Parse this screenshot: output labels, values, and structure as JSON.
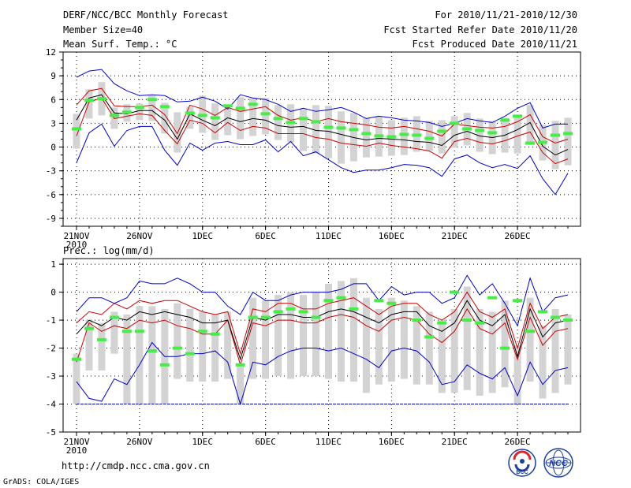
{
  "header": {
    "title": "DERF/NCC/BCC Monthly Forecast",
    "member_size": "Member Size=40",
    "variable": "Mean Surf. Temp.: °C",
    "period": "For 2010/11/21-2010/12/30",
    "fcst_started": "Fcst Started Refer Date 2010/11/20",
    "fcst_produced": "Fcst Produced Date 2010/11/21"
  },
  "footer": {
    "url": "http://cmdp.ncc.cma.gov.cn",
    "credit": "GrADS: COLA/IGES",
    "logo_bcc_text": "BCC",
    "logo_ncc_text": "NCC"
  },
  "colors": {
    "envelope": "#0000cc",
    "percentile": "#cc0000",
    "mean": "#000000",
    "box": "#d3d3d3",
    "obs": "#44ee44",
    "grid": "#000000"
  },
  "chart_data": [
    {
      "type": "box-line",
      "title": "Mean Surf. Temp.: °C",
      "ylim": [
        -10,
        12
      ],
      "yticks": [
        12,
        9,
        6,
        3,
        0,
        -3,
        -6,
        -9
      ],
      "xticks": [
        {
          "day": 0,
          "label": "21NOV",
          "sub": "2010"
        },
        {
          "day": 5,
          "label": "26NOV"
        },
        {
          "day": 10,
          "label": "1DEC"
        },
        {
          "day": 15,
          "label": "6DEC"
        },
        {
          "day": 20,
          "label": "11DEC"
        },
        {
          "day": 25,
          "label": "16DEC"
        },
        {
          "day": 30,
          "label": "21DEC"
        },
        {
          "day": 35,
          "label": "26DEC"
        }
      ],
      "days": 40,
      "series": [
        {
          "name": "max",
          "values": [
            8.8,
            9.6,
            9.8,
            8.0,
            7.1,
            6.5,
            6.6,
            6.5,
            5.7,
            5.8,
            6.3,
            5.8,
            4.8,
            6.6,
            6.2,
            6.0,
            5.4,
            4.5,
            4.9,
            4.5,
            4.7,
            5.0,
            4.4,
            3.6,
            3.9,
            3.7,
            3.4,
            3.3,
            3.1,
            2.6,
            3.0,
            3.6,
            3.3,
            3.1,
            3.9,
            4.9,
            5.6,
            2.4,
            2.9,
            2.9
          ]
        },
        {
          "name": "p90",
          "values": [
            5.3,
            7.1,
            7.4,
            5.2,
            5.1,
            5.1,
            5.3,
            4.1,
            1.7,
            5.3,
            4.8,
            4.0,
            5.0,
            4.5,
            4.8,
            5.1,
            4.0,
            3.4,
            3.7,
            3.2,
            3.6,
            3.2,
            3.0,
            2.8,
            2.5,
            2.4,
            2.6,
            2.3,
            2.0,
            1.4,
            2.9,
            2.7,
            2.5,
            2.4,
            2.6,
            3.2,
            4.1,
            1.3,
            0.5,
            1.0
          ]
        },
        {
          "name": "mean",
          "values": [
            3.4,
            6.2,
            6.6,
            4.3,
            4.2,
            4.6,
            4.6,
            3.4,
            1.0,
            4.2,
            3.4,
            2.7,
            3.7,
            3.2,
            3.6,
            3.4,
            2.7,
            2.5,
            2.6,
            2.1,
            2.0,
            1.6,
            1.2,
            0.9,
            1.1,
            1.0,
            0.9,
            0.7,
            0.6,
            0.2,
            1.5,
            2.0,
            1.4,
            1.2,
            1.5,
            2.2,
            3.1,
            0.1,
            -1.0,
            -0.3
          ]
        },
        {
          "name": "p10",
          "values": [
            1.4,
            5.7,
            6.2,
            3.6,
            3.9,
            4.2,
            4.0,
            2.1,
            0.4,
            3.4,
            3.0,
            1.8,
            3.1,
            2.1,
            2.6,
            2.4,
            1.7,
            1.7,
            1.7,
            1.2,
            1.0,
            0.5,
            0.3,
            0.1,
            0.5,
            0.2,
            0.0,
            -0.2,
            -0.5,
            -1.4,
            0.7,
            1.1,
            0.6,
            0.4,
            0.8,
            1.4,
            1.9,
            -0.7,
            -2.1,
            -1.5
          ]
        },
        {
          "name": "min",
          "values": [
            -2.0,
            1.8,
            2.9,
            0.1,
            2.1,
            2.6,
            2.6,
            -0.4,
            -2.3,
            0.5,
            -0.4,
            0.5,
            0.7,
            0.3,
            0.3,
            0.9,
            -0.6,
            0.7,
            -1.1,
            -0.6,
            -1.6,
            -2.6,
            -3.2,
            -2.9,
            -2.9,
            -2.6,
            -2.2,
            -2.3,
            -2.6,
            -3.7,
            -1.5,
            -1.0,
            -2.0,
            -2.6,
            -2.2,
            -2.7,
            -1.1,
            -4.0,
            -6.0,
            -3.3
          ]
        },
        {
          "name": "box_high",
          "values": [
            4.2,
            7.3,
            8.2,
            5.0,
            5.4,
            5.5,
            6.5,
            5.6,
            4.4,
            5.1,
            6.5,
            5.5,
            4.9,
            6.3,
            6.2,
            6.2,
            5.3,
            5.4,
            4.8,
            5.3,
            5.2,
            4.5,
            4.3,
            3.7,
            3.9,
            3.4,
            3.7,
            3.9,
            3.3,
            3.4,
            3.9,
            4.3,
            3.6,
            3.3,
            3.7,
            4.1,
            5.3,
            2.8,
            3.3,
            3.7
          ]
        },
        {
          "name": "box_low",
          "values": [
            -0.2,
            3.6,
            4.0,
            2.3,
            3.2,
            3.4,
            3.3,
            1.7,
            -0.7,
            2.3,
            1.8,
            0.9,
            1.5,
            1.0,
            1.4,
            1.6,
            0.9,
            0.6,
            -0.5,
            -0.8,
            -1.4,
            -2.1,
            -1.8,
            -1.3,
            -1.2,
            -1.1,
            -1.0,
            -0.6,
            -0.5,
            -0.8,
            -0.1,
            0.2,
            -0.6,
            -0.9,
            -0.7,
            -0.8,
            0.3,
            -1.7,
            -2.8,
            -2.3
          ]
        },
        {
          "name": "observed",
          "values": [
            2.3,
            5.9,
            6.1,
            4.0,
            4.4,
            5.0,
            6.0,
            5.1,
            null,
            4.3,
            4.0,
            3.7,
            5.2,
            4.9,
            5.4,
            4.2,
            3.6,
            3.1,
            3.6,
            3.2,
            2.5,
            2.4,
            2.2,
            1.7,
            1.4,
            1.3,
            1.6,
            1.5,
            1.1,
            2.0,
            3.0,
            2.3,
            2.1,
            1.8,
            3.4,
            3.9,
            0.5,
            0.6,
            1.5,
            1.7
          ]
        }
      ]
    },
    {
      "type": "box-line",
      "title": "Prec.: log(mm/d)",
      "ylim": [
        -5,
        1.2
      ],
      "yticks": [
        1,
        0,
        -1,
        -2,
        -3,
        -4,
        -5
      ],
      "xticks": [
        {
          "day": 0,
          "label": "21NOV",
          "sub": "2010"
        },
        {
          "day": 5,
          "label": "26NOV"
        },
        {
          "day": 10,
          "label": "1DEC"
        },
        {
          "day": 15,
          "label": "6DEC"
        },
        {
          "day": 20,
          "label": "11DEC"
        },
        {
          "day": 25,
          "label": "16DEC"
        },
        {
          "day": 30,
          "label": "21DEC"
        },
        {
          "day": 35,
          "label": "26DEC"
        }
      ],
      "days": 40,
      "floor": -4,
      "series": [
        {
          "name": "max",
          "values": [
            -0.7,
            -0.2,
            -0.2,
            -0.4,
            -0.2,
            0.4,
            0.3,
            0.3,
            0.5,
            0.3,
            0.0,
            0.0,
            -0.5,
            -0.8,
            0.0,
            -0.3,
            -0.3,
            -0.1,
            0.0,
            0.0,
            0.0,
            0.1,
            0.3,
            0.3,
            -0.3,
            0.2,
            -0.1,
            0.0,
            0.0,
            -0.4,
            -0.2,
            0.6,
            -0.1,
            0.3,
            -0.4,
            -1.2,
            0.5,
            -0.7,
            -0.2,
            -0.1
          ]
        },
        {
          "name": "p90",
          "values": [
            -1.1,
            -0.7,
            -0.8,
            -0.4,
            -0.6,
            -0.3,
            -0.4,
            -0.3,
            -0.3,
            -0.5,
            -0.7,
            -0.8,
            -0.7,
            -2.2,
            -0.6,
            -0.7,
            -0.4,
            -0.4,
            -0.6,
            -0.6,
            -0.4,
            -0.3,
            -0.2,
            -0.5,
            -0.8,
            -0.5,
            -0.4,
            -0.4,
            -0.8,
            -1.0,
            -0.7,
            0.0,
            -0.7,
            -0.9,
            -0.6,
            -2.0,
            -0.4,
            -1.3,
            -0.9,
            -0.8
          ]
        },
        {
          "name": "mean",
          "values": [
            -1.5,
            -1.0,
            -1.2,
            -0.9,
            -1.0,
            -0.7,
            -0.8,
            -0.7,
            -0.8,
            -0.9,
            -1.1,
            -1.1,
            -1.0,
            -2.4,
            -0.9,
            -1.0,
            -0.8,
            -0.8,
            -0.9,
            -0.9,
            -0.7,
            -0.6,
            -0.7,
            -0.9,
            -1.1,
            -0.8,
            -0.7,
            -0.7,
            -1.2,
            -1.4,
            -1.1,
            -0.3,
            -1.0,
            -1.2,
            -0.8,
            -2.3,
            -0.6,
            -1.6,
            -1.1,
            -1.0
          ]
        },
        {
          "name": "p10",
          "values": [
            -2.5,
            -1.1,
            -1.4,
            -1.2,
            -1.3,
            -1.0,
            -1.1,
            -1.0,
            -1.2,
            -1.3,
            -1.5,
            -1.5,
            -1.0,
            -2.6,
            -1.1,
            -1.2,
            -1.0,
            -1.0,
            -1.1,
            -1.1,
            -0.9,
            -0.8,
            -0.9,
            -1.2,
            -1.4,
            -1.0,
            -0.9,
            -1.0,
            -1.5,
            -1.8,
            -1.4,
            -0.6,
            -1.3,
            -1.5,
            -1.1,
            -2.4,
            -0.9,
            -1.9,
            -1.4,
            -1.3
          ]
        },
        {
          "name": "min",
          "values": [
            -3.2,
            -3.8,
            -3.9,
            -3.1,
            -3.3,
            -2.6,
            -1.8,
            -2.3,
            -2.3,
            -2.2,
            -2.2,
            -2.1,
            -2.5,
            -4.0,
            -2.5,
            -2.6,
            -2.3,
            -2.1,
            -2.0,
            -2.0,
            -2.1,
            -2.0,
            -2.2,
            -2.4,
            -2.7,
            -2.1,
            -2.0,
            -2.1,
            -2.5,
            -3.3,
            -3.2,
            -2.6,
            -2.9,
            -3.1,
            -2.7,
            -3.7,
            -2.5,
            -3.3,
            -2.8,
            -2.7
          ]
        },
        {
          "name": "box_high",
          "values": [
            -2.2,
            -1.0,
            -1.1,
            -0.7,
            -0.8,
            -0.5,
            -0.5,
            -0.6,
            -0.4,
            -0.6,
            -0.7,
            -0.8,
            -0.7,
            -2.6,
            -0.2,
            -0.3,
            -0.1,
            0.0,
            -0.1,
            0.0,
            0.3,
            0.4,
            0.5,
            -0.2,
            -0.6,
            -0.2,
            -0.3,
            -0.5,
            -0.7,
            -1.0,
            -0.6,
            0.2,
            -0.6,
            -0.7,
            -0.3,
            -1.9,
            -0.2,
            -1.2,
            -0.6,
            -0.8
          ]
        },
        {
          "name": "box_low",
          "values": [
            -4.0,
            -2.8,
            -2.8,
            -2.2,
            -4.0,
            -4.0,
            -4.0,
            -4.0,
            -3.1,
            -3.2,
            -3.2,
            -3.2,
            -3.1,
            -4.0,
            -3.1,
            -3.1,
            -3.0,
            -3.1,
            -3.0,
            -3.0,
            -3.1,
            -3.2,
            -3.2,
            -3.6,
            -3.3,
            -3.2,
            -3.1,
            -3.3,
            -3.3,
            -3.6,
            -3.6,
            -3.5,
            -3.7,
            -3.6,
            -3.4,
            -4.0,
            -3.2,
            -3.8,
            -3.6,
            -3.3
          ]
        },
        {
          "name": "observed",
          "values": [
            -2.4,
            -1.3,
            -1.7,
            -0.9,
            -1.4,
            -1.4,
            -2.1,
            -2.6,
            -2.0,
            -2.2,
            -1.4,
            -1.5,
            null,
            -2.6,
            -0.9,
            -0.9,
            -0.7,
            -0.6,
            -0.7,
            -0.9,
            -0.3,
            -0.2,
            -0.6,
            null,
            -0.3,
            -0.4,
            null,
            -1.0,
            -1.6,
            -1.1,
            0.0,
            -1.0,
            -1.1,
            -0.2,
            -2.0,
            -0.3,
            -1.4,
            -0.7,
            -0.9,
            -1.0
          ]
        }
      ]
    }
  ]
}
